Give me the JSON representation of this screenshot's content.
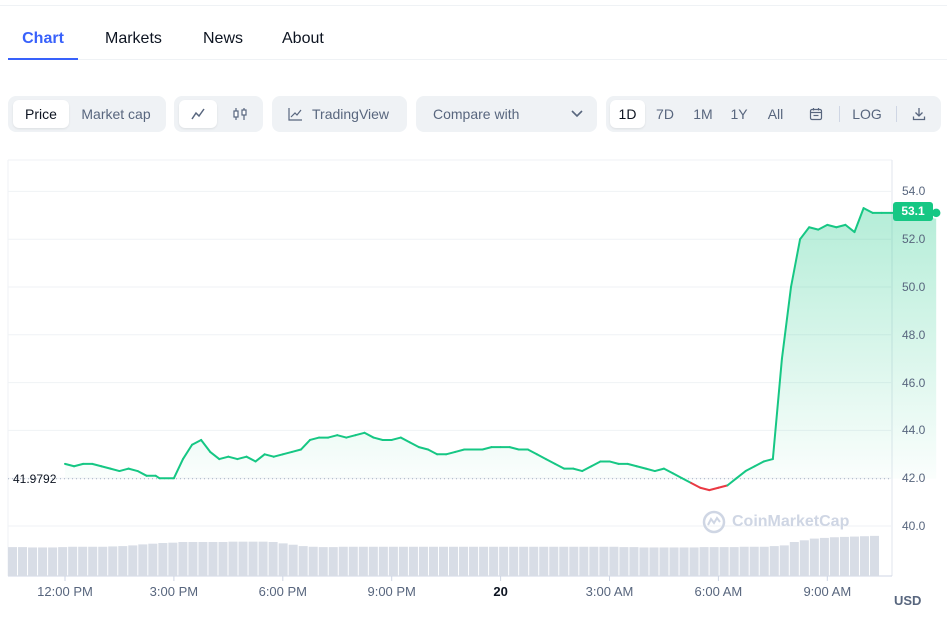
{
  "tabs": [
    {
      "label": "Chart",
      "active": true
    },
    {
      "label": "Markets",
      "active": false
    },
    {
      "label": "News",
      "active": false
    },
    {
      "label": "About",
      "active": false
    }
  ],
  "toolbar": {
    "data_type": {
      "price": "Price",
      "market_cap": "Market cap",
      "selected": "Price"
    },
    "chart_style": {
      "line_icon": "line-chart-icon",
      "candle_icon": "candlestick-icon",
      "selected": "line"
    },
    "tradingview_label": "TradingView",
    "compare_label": "Compare with",
    "ranges": [
      "1D",
      "7D",
      "1M",
      "1Y",
      "All"
    ],
    "selected_range": "1D",
    "log_label": "LOG"
  },
  "chart_data": {
    "type": "line",
    "series": [
      {
        "name": "Price",
        "x_hours": [
          0.0,
          0.25,
          0.5,
          0.75,
          1.0,
          1.25,
          1.5,
          1.75,
          2.0,
          2.25,
          2.5,
          2.6,
          3.0,
          3.25,
          3.5,
          3.75,
          4.0,
          4.25,
          4.5,
          4.75,
          5.0,
          5.25,
          5.5,
          5.75,
          6.0,
          6.25,
          6.5,
          6.75,
          7.0,
          7.25,
          7.5,
          7.75,
          8.0,
          8.25,
          8.5,
          8.75,
          9.0,
          9.25,
          9.5,
          9.75,
          10.0,
          10.25,
          10.5,
          10.75,
          11.0,
          11.25,
          11.5,
          11.75,
          12.0,
          12.25,
          12.5,
          12.75,
          13.0,
          13.25,
          13.5,
          13.75,
          14.0,
          14.25,
          14.5,
          14.75,
          15.0,
          15.25,
          15.5,
          15.75,
          16.0,
          16.25,
          16.5,
          16.75,
          17.0,
          17.25,
          17.5,
          17.75,
          18.0,
          18.25,
          18.5,
          18.75,
          19.0,
          19.25,
          19.5,
          19.75,
          20.0,
          20.25,
          20.5,
          20.75,
          21.0,
          21.25,
          21.5,
          21.75,
          22.0,
          22.25,
          22.5,
          22.75,
          23.0,
          23.25,
          23.5,
          23.75,
          24.0
        ],
        "values": [
          42.6,
          42.5,
          42.6,
          42.6,
          42.5,
          42.4,
          42.3,
          42.4,
          42.3,
          42.1,
          42.1,
          42.0,
          42.0,
          42.8,
          43.4,
          43.6,
          43.1,
          42.8,
          42.9,
          42.8,
          42.9,
          42.7,
          43.0,
          42.9,
          43.0,
          43.1,
          43.2,
          43.6,
          43.7,
          43.7,
          43.8,
          43.7,
          43.8,
          43.9,
          43.7,
          43.6,
          43.6,
          43.7,
          43.5,
          43.3,
          43.2,
          43.0,
          43.0,
          43.1,
          43.2,
          43.2,
          43.2,
          43.3,
          43.3,
          43.3,
          43.2,
          43.2,
          43.0,
          42.8,
          42.6,
          42.4,
          42.4,
          42.3,
          42.5,
          42.7,
          42.7,
          42.6,
          42.6,
          42.5,
          42.4,
          42.3,
          42.4,
          42.2,
          42.0,
          41.8,
          41.6,
          41.5,
          41.6,
          41.7,
          42.0,
          42.3,
          42.5,
          42.7,
          42.8,
          47.0,
          50.0,
          52.0,
          52.5,
          52.4,
          52.6,
          52.5,
          52.6,
          52.3,
          53.3,
          53.1,
          53.1,
          53.1,
          53.1,
          53.1,
          53.1,
          53.1,
          53.1
        ]
      }
    ],
    "volume_relative": [
      0.85,
      0.85,
      0.84,
      0.84,
      0.84,
      0.85,
      0.86,
      0.86,
      0.86,
      0.86,
      0.87,
      0.88,
      0.9,
      0.93,
      0.95,
      0.97,
      0.98,
      1.0,
      1.0,
      1.0,
      1.0,
      1.0,
      1.01,
      1.01,
      1.01,
      1.01,
      1.0,
      0.96,
      0.92,
      0.88,
      0.86,
      0.85,
      0.85,
      0.86,
      0.86,
      0.86,
      0.86,
      0.86,
      0.86,
      0.86,
      0.86,
      0.86,
      0.86,
      0.86,
      0.86,
      0.86,
      0.86,
      0.86,
      0.86,
      0.86,
      0.86,
      0.86,
      0.86,
      0.86,
      0.86,
      0.86,
      0.86,
      0.86,
      0.86,
      0.86,
      0.86,
      0.85,
      0.85,
      0.84,
      0.84,
      0.84,
      0.84,
      0.84,
      0.84,
      0.85,
      0.85,
      0.85,
      0.85,
      0.86,
      0.86,
      0.86,
      0.88,
      0.9,
      1.0,
      1.05,
      1.1,
      1.12,
      1.14,
      1.15,
      1.16,
      1.17,
      1.18
    ],
    "reference_value": "41.9792",
    "current_price": "53.1",
    "y_ticks": [
      "54.0",
      "52.0",
      "50.0",
      "48.0",
      "46.0",
      "44.0",
      "42.0",
      "40.0"
    ],
    "ylim": [
      38.0,
      55.0
    ],
    "x_ticks": [
      "12:00 PM",
      "3:00 PM",
      "6:00 PM",
      "9:00 PM",
      "20",
      "3:00 AM",
      "6:00 AM",
      "9:00 AM"
    ],
    "currency_label": "USD",
    "watermark": "CoinMarketCap",
    "colors": {
      "up": "#16c784",
      "down": "#ea3943",
      "grid": "#eff2f5",
      "axis_text": "#58667e"
    }
  }
}
